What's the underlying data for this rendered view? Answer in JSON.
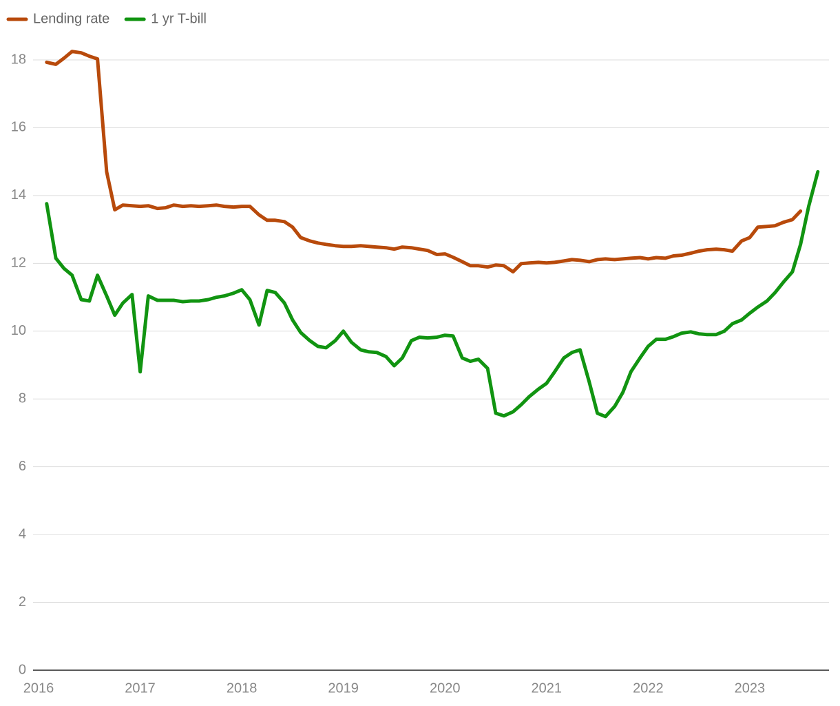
{
  "chart_data": {
    "type": "line",
    "x": [
      2016.08,
      2016.17,
      2016.25,
      2016.33,
      2016.42,
      2016.5,
      2016.58,
      2016.67,
      2016.75,
      2016.83,
      2016.92,
      2017.0,
      2017.08,
      2017.17,
      2017.25,
      2017.33,
      2017.42,
      2017.5,
      2017.58,
      2017.67,
      2017.75,
      2017.83,
      2017.92,
      2018.0,
      2018.08,
      2018.17,
      2018.25,
      2018.33,
      2018.42,
      2018.5,
      2018.58,
      2018.67,
      2018.75,
      2018.83,
      2018.92,
      2019.0,
      2019.08,
      2019.17,
      2019.25,
      2019.33,
      2019.42,
      2019.5,
      2019.58,
      2019.67,
      2019.75,
      2019.83,
      2019.92,
      2020.0,
      2020.08,
      2020.17,
      2020.25,
      2020.33,
      2020.42,
      2020.5,
      2020.58,
      2020.67,
      2020.75,
      2020.83,
      2020.92,
      2021.0,
      2021.08,
      2021.17,
      2021.25,
      2021.33,
      2021.42,
      2021.5,
      2021.58,
      2021.67,
      2021.75,
      2021.83,
      2021.92,
      2022.0,
      2022.08,
      2022.17,
      2022.25,
      2022.33,
      2022.42,
      2022.5,
      2022.58,
      2022.67,
      2022.75,
      2022.83,
      2022.92,
      2023.0,
      2023.08,
      2023.17,
      2023.25,
      2023.33,
      2023.42,
      2023.5,
      2023.58,
      2023.67
    ],
    "series": [
      {
        "name": "Lending rate",
        "color": "#b84a0b",
        "values": [
          17.93,
          17.87,
          18.05,
          18.25,
          18.21,
          18.11,
          18.03,
          14.7,
          13.58,
          13.72,
          13.7,
          13.68,
          13.7,
          13.62,
          13.64,
          13.72,
          13.68,
          13.7,
          13.68,
          13.7,
          13.72,
          13.68,
          13.66,
          13.68,
          13.68,
          13.43,
          13.27,
          13.27,
          13.23,
          13.07,
          12.76,
          12.66,
          12.6,
          12.56,
          12.52,
          12.5,
          12.5,
          12.52,
          12.5,
          12.48,
          12.46,
          12.42,
          12.48,
          12.46,
          12.42,
          12.38,
          12.26,
          12.28,
          12.18,
          12.05,
          11.93,
          11.93,
          11.89,
          11.95,
          11.93,
          11.75,
          11.99,
          12.01,
          12.03,
          12.01,
          12.03,
          12.07,
          12.11,
          12.09,
          12.05,
          12.11,
          12.13,
          12.11,
          12.13,
          12.15,
          12.17,
          12.13,
          12.17,
          12.15,
          12.22,
          12.24,
          12.3,
          12.36,
          12.4,
          12.42,
          12.4,
          12.36,
          12.66,
          12.76,
          13.07,
          13.09,
          13.11,
          13.21,
          13.29,
          13.54,
          null,
          null
        ]
      },
      {
        "name": "1 yr T-bill",
        "color": "#119411",
        "values": [
          13.76,
          12.15,
          11.85,
          11.65,
          10.93,
          10.89,
          11.65,
          11.04,
          10.47,
          10.83,
          11.08,
          8.8,
          11.04,
          10.91,
          10.91,
          10.91,
          10.87,
          10.89,
          10.89,
          10.93,
          11.0,
          11.04,
          11.12,
          11.22,
          10.93,
          10.18,
          11.2,
          11.14,
          10.83,
          10.33,
          9.96,
          9.72,
          9.55,
          9.51,
          9.72,
          10.0,
          9.67,
          9.45,
          9.39,
          9.37,
          9.25,
          8.98,
          9.21,
          9.72,
          9.82,
          9.8,
          9.82,
          9.88,
          9.86,
          9.21,
          9.11,
          9.17,
          8.9,
          7.58,
          7.5,
          7.62,
          7.83,
          8.07,
          8.29,
          8.46,
          8.8,
          9.21,
          9.37,
          9.45,
          8.5,
          7.58,
          7.48,
          7.78,
          8.19,
          8.8,
          9.21,
          9.55,
          9.76,
          9.76,
          9.84,
          9.94,
          9.98,
          9.92,
          9.9,
          9.9,
          10.0,
          10.22,
          10.33,
          10.53,
          10.71,
          10.89,
          11.14,
          11.44,
          11.75,
          12.56,
          13.68,
          14.7
        ]
      }
    ],
    "xlim": [
      2016,
      2023.78
    ],
    "xticks": [
      2016,
      2017,
      2018,
      2019,
      2020,
      2021,
      2022,
      2023
    ],
    "ylim": [
      0,
      18
    ],
    "yticks": [
      0,
      2,
      4,
      6,
      8,
      10,
      12,
      14,
      16,
      18
    ],
    "grid": true,
    "legend": "top-left"
  }
}
